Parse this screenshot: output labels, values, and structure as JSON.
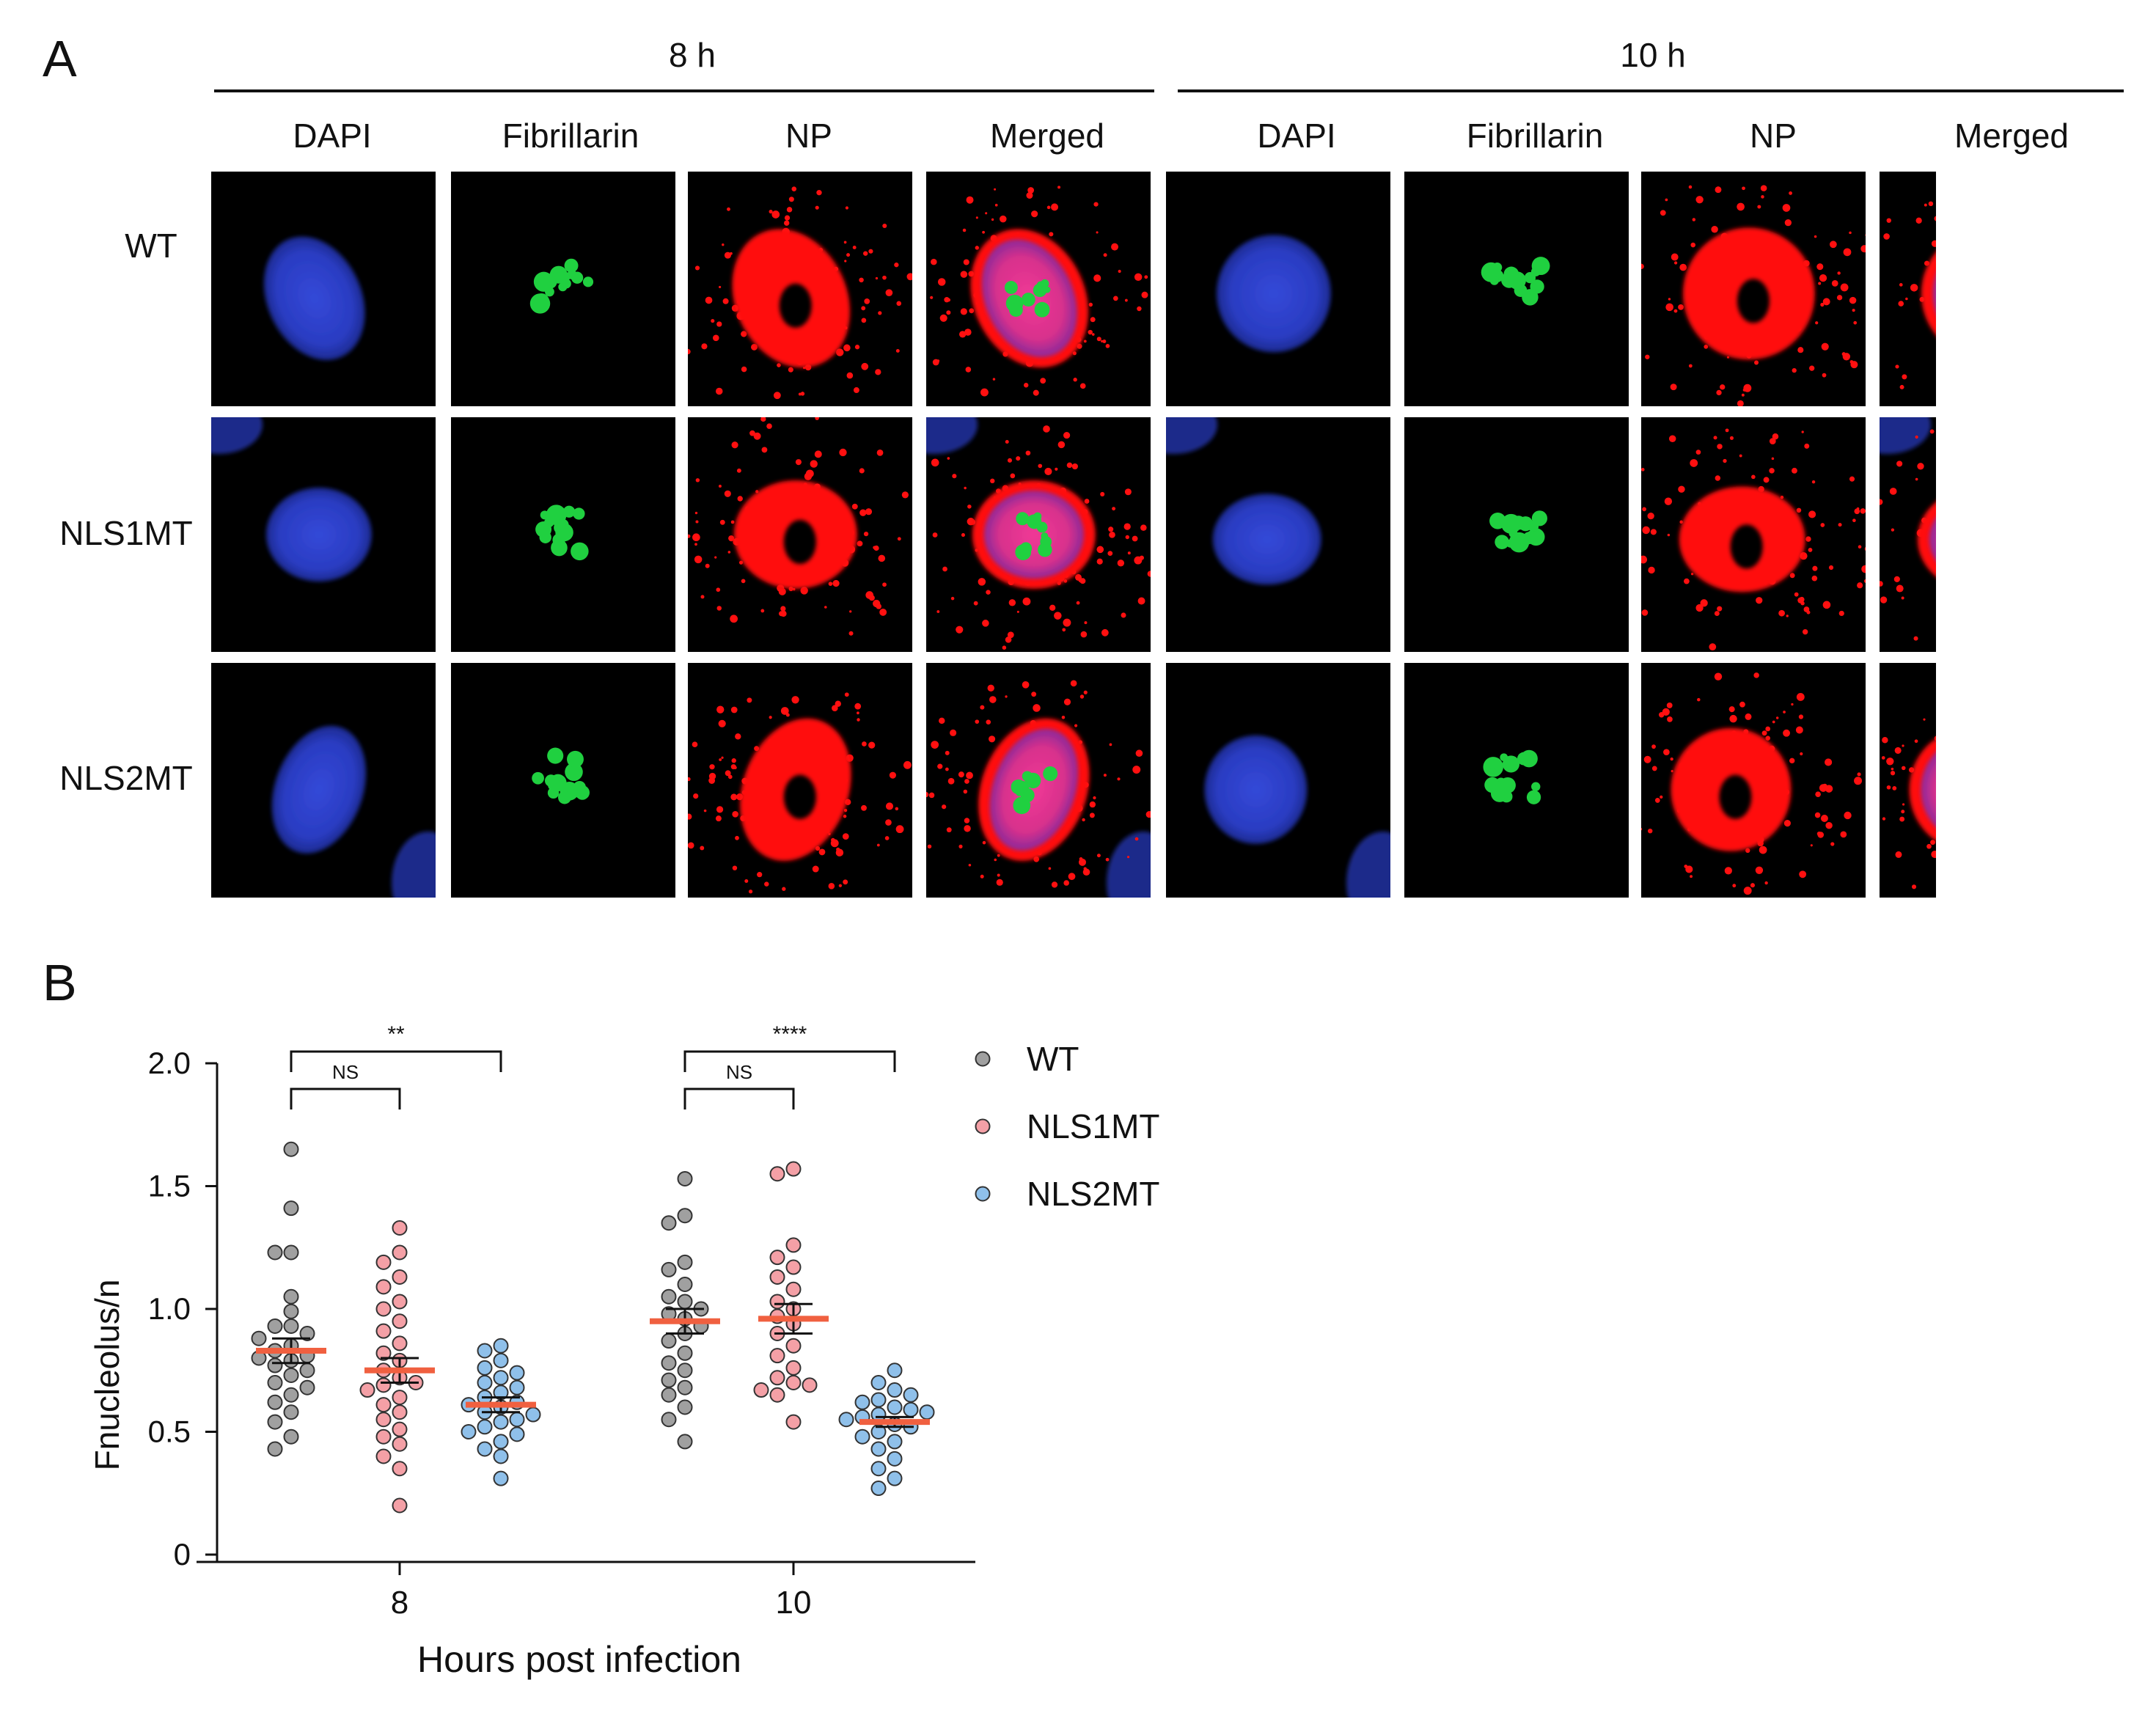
{
  "figure": {
    "panel_a_label": "A",
    "panel_b_label": "B",
    "timepoints": [
      "8 h",
      "10 h"
    ],
    "channels": [
      "DAPI",
      "Fibrillarin",
      "NP",
      "Merged"
    ],
    "rows": [
      "WT",
      "NLS1MT",
      "NLS2MT"
    ]
  },
  "colors": {
    "dapi": "#2a3fd0",
    "fibrillarin": "#20d040",
    "np": "#ff1010",
    "merged_nucleus": "#e0308a",
    "wt": "#a0a0a0",
    "nls1mt": "#f4a0a6",
    "nls2mt": "#8fc0ea",
    "mean_bar": "#f06040"
  },
  "chart_data": {
    "type": "scatter",
    "xlabel": "Hours post infection",
    "ylabel": "Fnucleolus/n",
    "ylim": [
      0,
      2.0
    ],
    "yticks": [
      "0",
      "0.5",
      "1.0",
      "1.5",
      "2.0"
    ],
    "categories": [
      "8",
      "10"
    ],
    "legend_position": "right",
    "series": [
      {
        "name": "WT",
        "color": "#a0a0a0",
        "mean": {
          "8": 0.83,
          "10": 0.95
        },
        "sem": {
          "8": 0.05,
          "10": 0.05
        },
        "values": {
          "8": [
            1.65,
            1.41,
            1.23,
            1.23,
            1.05,
            0.99,
            0.93,
            0.93,
            0.9,
            0.88,
            0.85,
            0.83,
            0.81,
            0.8,
            0.79,
            0.77,
            0.75,
            0.73,
            0.7,
            0.68,
            0.65,
            0.62,
            0.58,
            0.54,
            0.48,
            0.43
          ],
          "10": [
            1.53,
            1.38,
            1.35,
            1.19,
            1.16,
            1.1,
            1.05,
            1.03,
            1.0,
            0.98,
            0.96,
            0.93,
            0.9,
            0.87,
            0.82,
            0.78,
            0.75,
            0.71,
            0.68,
            0.65,
            0.6,
            0.55,
            0.46
          ]
        }
      },
      {
        "name": "NLS1MT",
        "color": "#f4a0a6",
        "mean": {
          "8": 0.75,
          "10": 0.96
        },
        "sem": {
          "8": 0.05,
          "10": 0.06
        },
        "values": {
          "8": [
            1.33,
            1.23,
            1.19,
            1.13,
            1.09,
            1.03,
            1.0,
            0.95,
            0.91,
            0.86,
            0.82,
            0.79,
            0.75,
            0.72,
            0.7,
            0.69,
            0.67,
            0.64,
            0.61,
            0.58,
            0.55,
            0.51,
            0.48,
            0.45,
            0.4,
            0.35,
            0.2
          ],
          "10": [
            1.57,
            1.55,
            1.26,
            1.21,
            1.17,
            1.13,
            1.08,
            1.03,
            1.0,
            0.97,
            0.94,
            0.9,
            0.85,
            0.81,
            0.76,
            0.72,
            0.7,
            0.69,
            0.67,
            0.65,
            0.54
          ]
        }
      },
      {
        "name": "NLS2MT",
        "color": "#8fc0ea",
        "mean": {
          "8": 0.61,
          "10": 0.54
        },
        "sem": {
          "8": 0.03,
          "10": 0.02
        },
        "values": {
          "8": [
            0.85,
            0.83,
            0.79,
            0.76,
            0.74,
            0.72,
            0.7,
            0.68,
            0.66,
            0.64,
            0.62,
            0.61,
            0.6,
            0.58,
            0.57,
            0.55,
            0.54,
            0.52,
            0.5,
            0.49,
            0.46,
            0.43,
            0.4,
            0.31
          ],
          "10": [
            0.75,
            0.7,
            0.67,
            0.65,
            0.63,
            0.62,
            0.6,
            0.59,
            0.58,
            0.57,
            0.56,
            0.55,
            0.53,
            0.52,
            0.5,
            0.48,
            0.46,
            0.43,
            0.39,
            0.35,
            0.31,
            0.27
          ]
        }
      }
    ],
    "annotations": [
      {
        "group": "8",
        "from": "WT",
        "to": "NLS2MT",
        "text": "**"
      },
      {
        "group": "8",
        "from": "WT",
        "to": "NLS1MT",
        "text": "NS"
      },
      {
        "group": "10",
        "from": "WT",
        "to": "NLS2MT",
        "text": "****"
      },
      {
        "group": "10",
        "from": "WT",
        "to": "NLS1MT",
        "text": "NS"
      }
    ]
  }
}
